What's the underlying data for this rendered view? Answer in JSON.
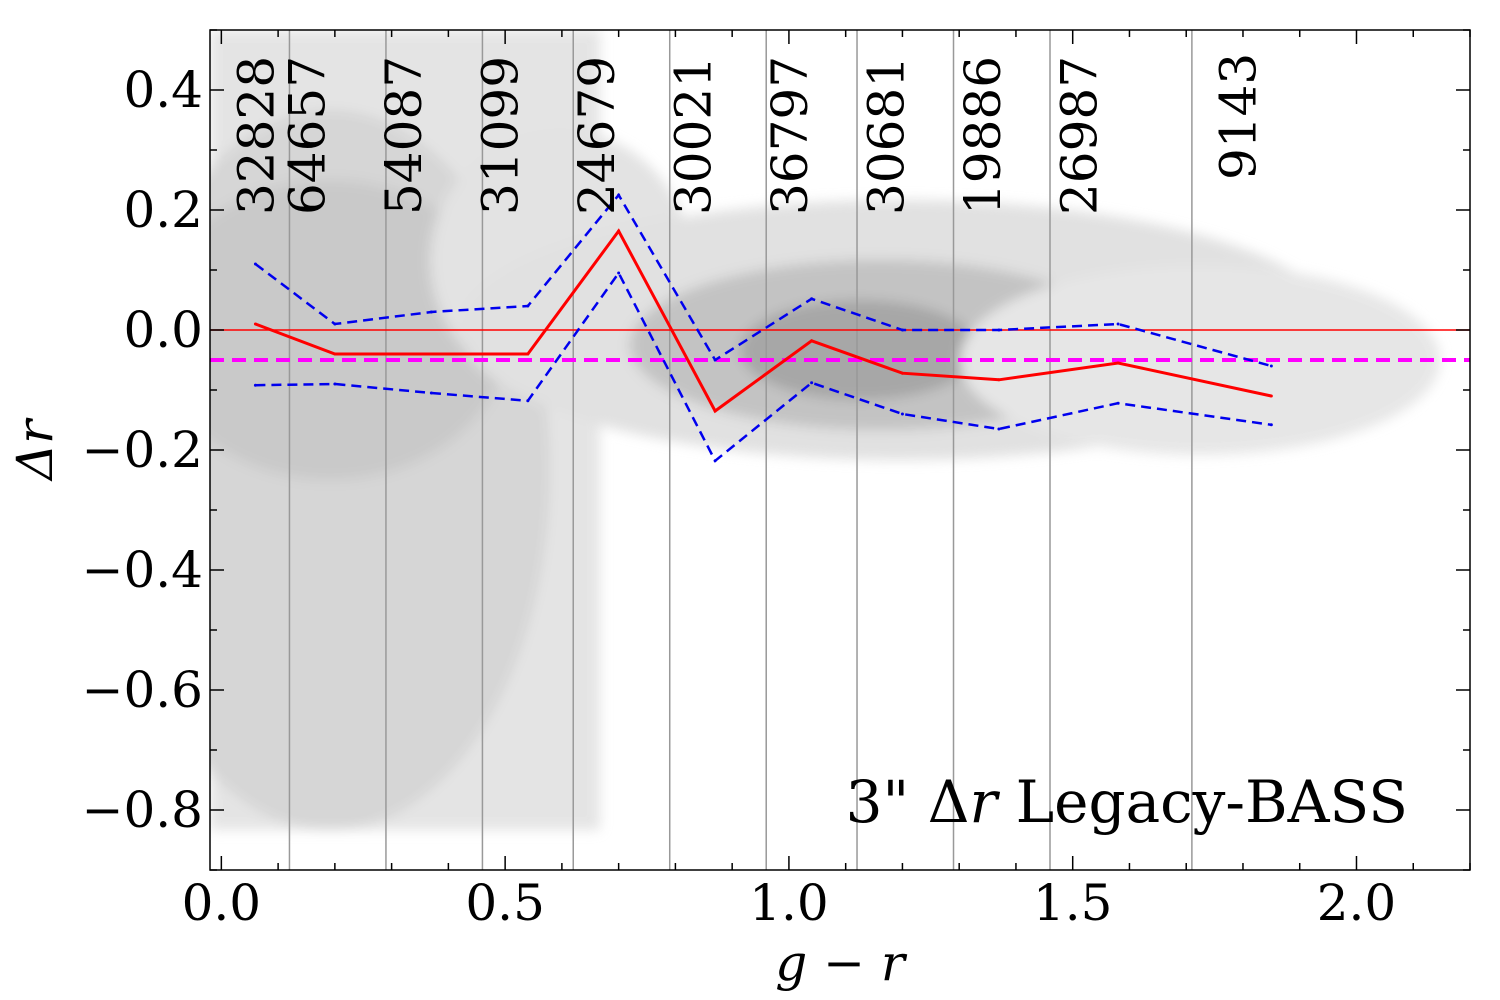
{
  "chart_data": {
    "type": "scatter",
    "xlabel": "g − r",
    "ylabel": "Δr",
    "xlim": [
      -0.02,
      2.2
    ],
    "ylim": [
      -0.9,
      0.5
    ],
    "x_ticks": [
      0.0,
      0.5,
      1.0,
      1.5,
      2.0
    ],
    "x_tick_labels": [
      "0.0",
      "0.5",
      "1.0",
      "1.5",
      "2.0"
    ],
    "y_ticks": [
      0.4,
      0.2,
      0.0,
      -0.2,
      -0.4,
      -0.6,
      -0.8
    ],
    "y_tick_labels": [
      "0.4",
      "0.2",
      "0.0",
      "−0.2",
      "−0.4",
      "−0.6",
      "−0.8"
    ],
    "annotation": {
      "prefix": "3\" ",
      "symbol": "Δ",
      "var": "r",
      "suffix": " Legacy-BASS"
    },
    "bin_edges": [
      0.12,
      0.29,
      0.46,
      0.62,
      0.79,
      0.96,
      1.12,
      1.29,
      1.46,
      1.71
    ],
    "bin_counts": [
      {
        "x": 0.06,
        "label": "32828"
      },
      {
        "x": 0.15,
        "label": "64657"
      },
      {
        "x": 0.32,
        "label": "54087"
      },
      {
        "x": 0.49,
        "label": "31099"
      },
      {
        "x": 0.66,
        "label": "24679"
      },
      {
        "x": 0.83,
        "label": "30021"
      },
      {
        "x": 1.0,
        "label": "36797"
      },
      {
        "x": 1.17,
        "label": "30681"
      },
      {
        "x": 1.34,
        "label": "19886"
      },
      {
        "x": 1.51,
        "label": "26987"
      },
      {
        "x": 1.79,
        "label": "9143"
      }
    ],
    "series": [
      {
        "name": "median",
        "color": "#ff0000",
        "style": "solid",
        "x": [
          0.06,
          0.2,
          0.37,
          0.54,
          0.7,
          0.87,
          1.04,
          1.2,
          1.37,
          1.58,
          1.85
        ],
        "y": [
          0.01,
          -0.04,
          -0.04,
          -0.04,
          0.165,
          -0.135,
          -0.018,
          -0.072,
          -0.083,
          -0.055,
          -0.11
        ]
      },
      {
        "name": "upper",
        "color": "#0000ee",
        "style": "dashed",
        "x": [
          0.06,
          0.2,
          0.37,
          0.54,
          0.7,
          0.87,
          1.04,
          1.2,
          1.37,
          1.58,
          1.85
        ],
        "y": [
          0.11,
          0.01,
          0.03,
          0.04,
          0.225,
          -0.05,
          0.052,
          0.0,
          0.0,
          0.01,
          -0.06
        ]
      },
      {
        "name": "lower",
        "color": "#0000ee",
        "style": "dashed",
        "x": [
          0.06,
          0.2,
          0.37,
          0.54,
          0.7,
          0.87,
          1.04,
          1.2,
          1.37,
          1.58,
          1.85
        ],
        "y": [
          -0.092,
          -0.09,
          -0.105,
          -0.118,
          0.095,
          -0.218,
          -0.088,
          -0.14,
          -0.165,
          -0.122,
          -0.158
        ]
      }
    ],
    "reference_lines": [
      {
        "name": "zero-line",
        "y": 0.0,
        "color": "#ff0000",
        "style": "solid"
      },
      {
        "name": "offset-line",
        "y": -0.05,
        "color": "#ff00ff",
        "style": "dashed"
      }
    ]
  }
}
